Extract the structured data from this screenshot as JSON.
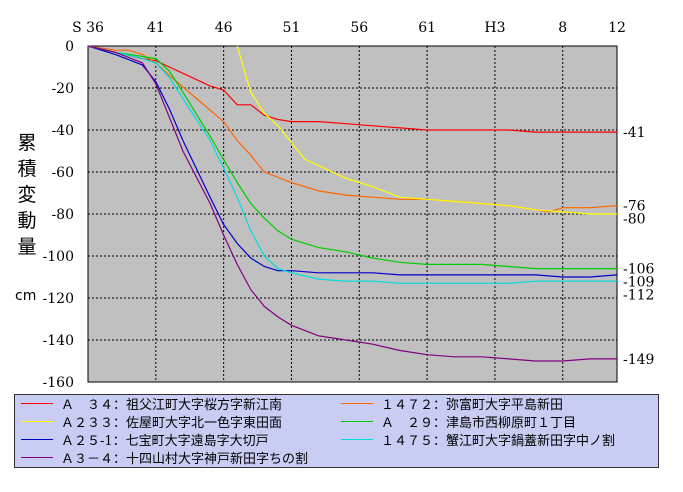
{
  "chart_data": {
    "type": "line",
    "ylabel": "累積変動量",
    "yunit": "cm",
    "ylim": [
      -160,
      0
    ],
    "xlim": [
      1961,
      2000
    ],
    "x_ticks": [
      {
        "label": "S 36",
        "x": 1961
      },
      {
        "label": "41",
        "x": 1966
      },
      {
        "label": "46",
        "x": 1971
      },
      {
        "label": "51",
        "x": 1976
      },
      {
        "label": "56",
        "x": 1981
      },
      {
        "label": "61",
        "x": 1986
      },
      {
        "label": "H3",
        "x": 1991
      },
      {
        "label": "8",
        "x": 1996
      },
      {
        "label": "12",
        "x": 2000
      }
    ],
    "y_ticks": [
      0,
      -20,
      -40,
      -60,
      -80,
      -100,
      -120,
      -140,
      -160
    ],
    "grid": true,
    "end_labels": [
      "-41",
      "-76",
      "-80",
      "-106",
      "-109",
      "-112",
      "-149"
    ],
    "series": [
      {
        "name": "Ａ　３４：祖父江町大字桜方字新江南",
        "color": "#ff0000",
        "x": [
          1961,
          1963,
          1965,
          1966,
          1967,
          1968,
          1970,
          1971,
          1972,
          1973,
          1974,
          1975,
          1976,
          1978,
          1980,
          1982,
          1984,
          1986,
          1988,
          1990,
          1992,
          1994,
          1996,
          1998,
          2000
        ],
        "y": [
          0,
          -3,
          -6,
          -7,
          -10,
          -13,
          -19,
          -21,
          -28,
          -28,
          -33,
          -35,
          -36,
          -36,
          -37,
          -38,
          -39,
          -40,
          -40,
          -40,
          -40,
          -41,
          -41,
          -41,
          -41
        ],
        "end_label": "-41"
      },
      {
        "name": "１４７２：弥富町大字平島新田",
        "color": "#ff6600",
        "x": [
          1961,
          1963,
          1964,
          1965,
          1966,
          1967,
          1969,
          1971,
          1972,
          1973,
          1974,
          1976,
          1978,
          1980,
          1982,
          1984,
          1986,
          1988,
          1990,
          1992,
          1994,
          1995,
          1996,
          1998,
          2000
        ],
        "y": [
          0,
          -2,
          -2,
          -4,
          -8,
          -14,
          -25,
          -36,
          -45,
          -52,
          -60,
          -65,
          -69,
          -71,
          -72,
          -73,
          -73,
          -74,
          -75,
          -76,
          -78,
          -79,
          -77,
          -77,
          -76
        ],
        "end_label": "-76"
      },
      {
        "name": "Ａ２３３：佐屋町大字北一色字東田面",
        "color": "#ffff00",
        "x": [
          1972,
          1973,
          1974,
          1975,
          1976,
          1977,
          1978,
          1980,
          1982,
          1984,
          1986,
          1988,
          1990,
          1992,
          1994,
          1996,
          1998,
          2000
        ],
        "y": [
          0,
          -22,
          -32,
          -38,
          -46,
          -54,
          -57,
          -63,
          -67,
          -72,
          -73,
          -74,
          -75,
          -76,
          -78,
          -79,
          -80,
          -80
        ],
        "end_label": "-80"
      },
      {
        "name": "Ａ　２９：津島市西柳原町１丁目",
        "color": "#00cc00",
        "x": [
          1961,
          1963,
          1965,
          1966,
          1967,
          1968,
          1970,
          1971,
          1972,
          1973,
          1974,
          1975,
          1976,
          1978,
          1980,
          1982,
          1984,
          1986,
          1988,
          1990,
          1992,
          1994,
          1996,
          1998,
          2000
        ],
        "y": [
          0,
          -3,
          -5,
          -6,
          -12,
          -22,
          -43,
          -54,
          -65,
          -75,
          -82,
          -88,
          -92,
          -96,
          -98,
          -101,
          -103,
          -104,
          -104,
          -104,
          -105,
          -106,
          -106,
          -106,
          -106
        ],
        "end_label": "-106"
      },
      {
        "name": "Ａ２５-1：七宝町大字遠島字大切戸",
        "color": "#0000cc",
        "x": [
          1961,
          1963,
          1965,
          1966,
          1967,
          1968,
          1970,
          1971,
          1972,
          1973,
          1974,
          1975,
          1976,
          1978,
          1980,
          1982,
          1984,
          1986,
          1988,
          1990,
          1992,
          1994,
          1996,
          1998,
          2000
        ],
        "y": [
          0,
          -4,
          -9,
          -17,
          -30,
          -45,
          -72,
          -85,
          -94,
          -101,
          -105,
          -107,
          -107,
          -108,
          -108,
          -108,
          -109,
          -109,
          -109,
          -109,
          -109,
          -109,
          -110,
          -110,
          -109
        ],
        "end_label": "-109"
      },
      {
        "name": "１４７５：蟹江町大字鍋蓋新田字中ノ割",
        "color": "#00dddd",
        "x": [
          1961,
          1963,
          1965,
          1966,
          1967,
          1968,
          1970,
          1971,
          1972,
          1973,
          1974,
          1975,
          1976,
          1978,
          1980,
          1982,
          1984,
          1986,
          1988,
          1990,
          1992,
          1994,
          1996,
          1998,
          2000
        ],
        "y": [
          0,
          -3,
          -6,
          -8,
          -15,
          -25,
          -45,
          -58,
          -72,
          -88,
          -100,
          -106,
          -108,
          -111,
          -112,
          -112,
          -113,
          -113,
          -113,
          -113,
          -113,
          -112,
          -112,
          -112,
          -112
        ],
        "end_label": "-112"
      },
      {
        "name": "Ａ３－４：十四山村大字神戸新田字ちの割",
        "color": "#800080",
        "x": [
          1961,
          1963,
          1965,
          1966,
          1967,
          1968,
          1970,
          1971,
          1972,
          1973,
          1974,
          1975,
          1976,
          1978,
          1980,
          1982,
          1984,
          1986,
          1988,
          1990,
          1992,
          1994,
          1996,
          1998,
          2000
        ],
        "y": [
          0,
          -3,
          -8,
          -18,
          -34,
          -50,
          -75,
          -90,
          -104,
          -116,
          -124,
          -129,
          -133,
          -138,
          -140,
          -142,
          -145,
          -147,
          -148,
          -148,
          -149,
          -150,
          -150,
          -149,
          -149
        ],
        "end_label": "-149"
      }
    ]
  }
}
